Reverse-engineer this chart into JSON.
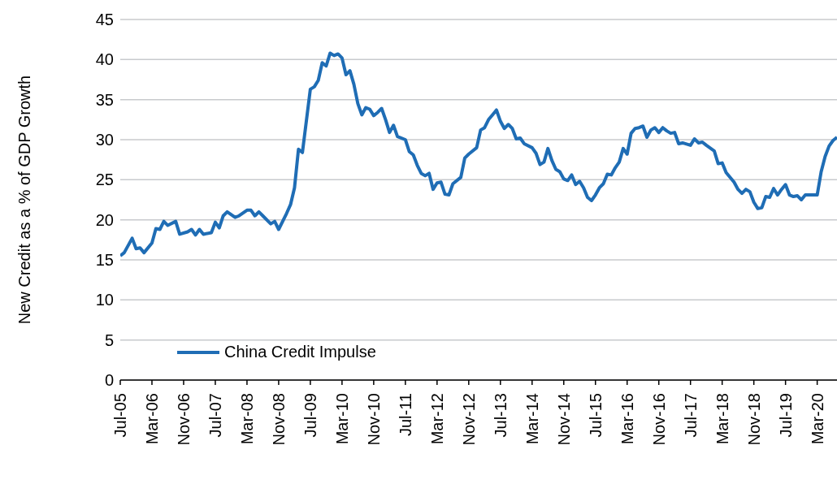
{
  "chart_data": {
    "type": "line",
    "ylabel": "New Credit as a % of GDP Growth",
    "x": [
      "2005-07",
      "2005-08",
      "2005-10",
      "2005-11",
      "2005-12",
      "2006-01",
      "2006-03",
      "2006-04",
      "2006-05",
      "2006-06",
      "2006-07",
      "2006-09",
      "2006-10",
      "2006-12",
      "2007-01",
      "2007-02",
      "2007-03",
      "2007-04",
      "2007-06",
      "2007-07",
      "2007-08",
      "2007-09",
      "2007-10",
      "2007-12",
      "2008-01",
      "2008-03",
      "2008-04",
      "2008-05",
      "2008-06",
      "2008-07",
      "2008-09",
      "2008-10",
      "2008-11",
      "2009-01",
      "2009-02",
      "2009-03",
      "2009-04",
      "2009-05",
      "2009-07",
      "2009-08",
      "2009-09",
      "2009-10",
      "2009-11",
      "2009-12",
      "2010-01",
      "2010-02",
      "2010-03",
      "2010-04",
      "2010-05",
      "2010-06",
      "2010-07",
      "2010-08",
      "2010-09",
      "2010-10",
      "2010-11",
      "2010-12",
      "2011-01",
      "2011-02",
      "2011-03",
      "2011-04",
      "2011-05",
      "2011-07",
      "2011-08",
      "2011-09",
      "2011-10",
      "2011-11",
      "2011-12",
      "2012-01",
      "2012-02",
      "2012-03",
      "2012-04",
      "2012-05",
      "2012-06",
      "2012-07",
      "2012-09",
      "2012-10",
      "2012-11",
      "2013-01",
      "2013-02",
      "2013-03",
      "2013-04",
      "2013-05",
      "2013-06",
      "2013-07",
      "2013-08",
      "2013-09",
      "2013-10",
      "2013-11",
      "2013-12",
      "2014-01",
      "2014-03",
      "2014-04",
      "2014-05",
      "2014-06",
      "2014-07",
      "2014-08",
      "2014-09",
      "2014-10",
      "2014-11",
      "2014-12",
      "2015-01",
      "2015-02",
      "2015-03",
      "2015-04",
      "2015-05",
      "2015-06",
      "2015-07",
      "2015-08",
      "2015-09",
      "2015-10",
      "2015-11",
      "2015-12",
      "2016-01",
      "2016-02",
      "2016-03",
      "2016-04",
      "2016-05",
      "2016-06",
      "2016-07",
      "2016-08",
      "2016-09",
      "2016-10",
      "2016-11",
      "2016-12",
      "2017-01",
      "2017-02",
      "2017-03",
      "2017-04",
      "2017-05",
      "2017-07",
      "2017-08",
      "2017-09",
      "2017-10",
      "2017-11",
      "2018-01",
      "2018-02",
      "2018-03",
      "2018-04",
      "2018-06",
      "2018-07",
      "2018-08",
      "2018-09",
      "2018-10",
      "2018-11",
      "2018-12",
      "2019-01",
      "2019-02",
      "2019-03",
      "2019-04",
      "2019-05",
      "2019-06",
      "2019-07",
      "2019-08",
      "2019-09",
      "2019-10",
      "2019-11",
      "2019-12",
      "2020-01",
      "2020-03",
      "2020-04",
      "2020-05",
      "2020-06",
      "2020-07",
      "2020-08"
    ],
    "series": [
      {
        "name": "China Credit Impulse",
        "color": "#1f6db5",
        "values": [
          15.5,
          15.9,
          17.7,
          16.4,
          16.5,
          15.9,
          17.1,
          18.9,
          18.8,
          19.8,
          19.3,
          19.8,
          18.2,
          18.5,
          18.8,
          18.1,
          18.8,
          18.2,
          18.4,
          19.7,
          19.0,
          20.5,
          21.0,
          20.3,
          20.5,
          21.2,
          21.2,
          20.5,
          21.0,
          20.5,
          19.5,
          19.8,
          18.8,
          20.8,
          21.9,
          24.0,
          28.8,
          28.4,
          36.3,
          36.6,
          37.4,
          39.6,
          39.2,
          40.8,
          40.5,
          40.7,
          40.2,
          38.1,
          38.6,
          36.9,
          34.5,
          33.1,
          34.0,
          33.8,
          33.0,
          33.4,
          33.9,
          32.5,
          30.9,
          31.8,
          30.4,
          30.0,
          28.5,
          28.1,
          26.8,
          25.8,
          25.5,
          25.8,
          23.8,
          24.6,
          24.7,
          23.2,
          23.1,
          24.5,
          25.3,
          27.7,
          28.2,
          29.0,
          31.2,
          31.5,
          32.5,
          33.1,
          33.7,
          32.3,
          31.4,
          31.9,
          31.4,
          30.1,
          30.2,
          29.5,
          29.0,
          28.3,
          26.9,
          27.2,
          28.9,
          27.4,
          26.3,
          26.0,
          25.1,
          24.9,
          25.6,
          24.4,
          24.8,
          24.0,
          22.8,
          22.4,
          23.1,
          24.0,
          24.5,
          25.7,
          25.6,
          26.5,
          27.2,
          28.9,
          28.2,
          30.8,
          31.4,
          31.5,
          31.7,
          30.3,
          31.2,
          31.5,
          30.9,
          31.5,
          31.1,
          30.8,
          30.9,
          29.5,
          29.6,
          29.3,
          30.1,
          29.6,
          29.7,
          29.3,
          28.6,
          27.0,
          27.1,
          25.9,
          24.7,
          23.8,
          23.3,
          23.8,
          23.5,
          22.2,
          21.4,
          21.5,
          22.9,
          22.8,
          23.9,
          23.1,
          23.8,
          24.4,
          23.1,
          22.9,
          23.0,
          22.5,
          23.1,
          23.1,
          23.1,
          26.0,
          27.9,
          29.2,
          29.9,
          30.3
        ]
      }
    ],
    "xlim": [
      "2005-07",
      "2020-08"
    ],
    "xticks": [
      {
        "value": "2005-07",
        "label": "Jul-05"
      },
      {
        "value": "2006-03",
        "label": "Mar-06"
      },
      {
        "value": "2006-11",
        "label": "Nov-06"
      },
      {
        "value": "2007-07",
        "label": "Jul-07"
      },
      {
        "value": "2008-03",
        "label": "Mar-08"
      },
      {
        "value": "2008-11",
        "label": "Nov-08"
      },
      {
        "value": "2009-07",
        "label": "Jul-09"
      },
      {
        "value": "2010-03",
        "label": "Mar-10"
      },
      {
        "value": "2010-11",
        "label": "Nov-10"
      },
      {
        "value": "2011-07",
        "label": "Jul-11"
      },
      {
        "value": "2012-03",
        "label": "Mar-12"
      },
      {
        "value": "2012-11",
        "label": "Nov-12"
      },
      {
        "value": "2013-07",
        "label": "Jul-13"
      },
      {
        "value": "2014-03",
        "label": "Mar-14"
      },
      {
        "value": "2014-11",
        "label": "Nov-14"
      },
      {
        "value": "2015-07",
        "label": "Jul-15"
      },
      {
        "value": "2016-03",
        "label": "Mar-16"
      },
      {
        "value": "2016-11",
        "label": "Nov-16"
      },
      {
        "value": "2017-07",
        "label": "Jul-17"
      },
      {
        "value": "2018-03",
        "label": "Mar-18"
      },
      {
        "value": "2018-11",
        "label": "Nov-18"
      },
      {
        "value": "2019-07",
        "label": "Jul-19"
      },
      {
        "value": "2020-03",
        "label": "Mar-20"
      }
    ],
    "ylim": [
      0,
      45
    ],
    "yticks": [
      0,
      5,
      10,
      15,
      20,
      25,
      30,
      35,
      40,
      45
    ],
    "grid": "y",
    "legend": "bottom",
    "marker": "none",
    "line_style": "solid"
  }
}
